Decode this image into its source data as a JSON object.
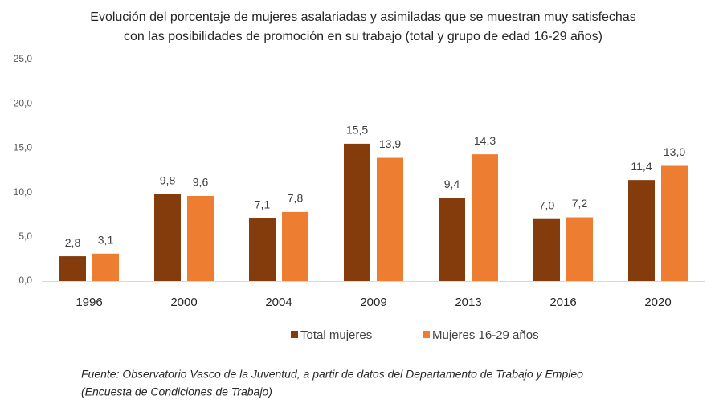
{
  "chart_data": {
    "type": "bar",
    "title": [
      "Evolución del porcentaje de mujeres asalariadas y asimiladas que se muestran muy satisfechas",
      "con las posibilidades de promoción en su trabajo (total y grupo de edad 16-29 años)"
    ],
    "categories": [
      "1996",
      "2000",
      "2004",
      "2009",
      "2013",
      "2016",
      "2020"
    ],
    "series": [
      {
        "name": "Total mujeres",
        "color": "#843c0c",
        "values": [
          2.8,
          9.8,
          7.1,
          15.5,
          9.4,
          7.0,
          11.4
        ],
        "value_labels": [
          "2,8",
          "9,8",
          "7,1",
          "15,5",
          "9,4",
          "7,0",
          "11,4"
        ]
      },
      {
        "name": "Mujeres 16-29 años",
        "color": "#ed7d31",
        "values": [
          3.1,
          9.6,
          7.8,
          13.9,
          14.3,
          7.2,
          13.0
        ],
        "value_labels": [
          "3,1",
          "9,6",
          "7,8",
          "13,9",
          "14,3",
          "7,2",
          "13,0"
        ]
      }
    ],
    "ylim": [
      0,
      25
    ],
    "yticks": [
      {
        "value": 0,
        "label": "0,0"
      },
      {
        "value": 5,
        "label": "5,0"
      },
      {
        "value": 10,
        "label": "10,0"
      },
      {
        "value": 15,
        "label": "15,0"
      },
      {
        "value": 20,
        "label": "20,0"
      },
      {
        "value": 25,
        "label": "25,0"
      }
    ],
    "grid": false,
    "legend": "bottom",
    "source": [
      "Fuente: Observatorio Vasco de la Juventud, a partir de datos del Departamento de Trabajo y Empleo",
      "(Encuesta de Condiciones de Trabajo)"
    ]
  }
}
